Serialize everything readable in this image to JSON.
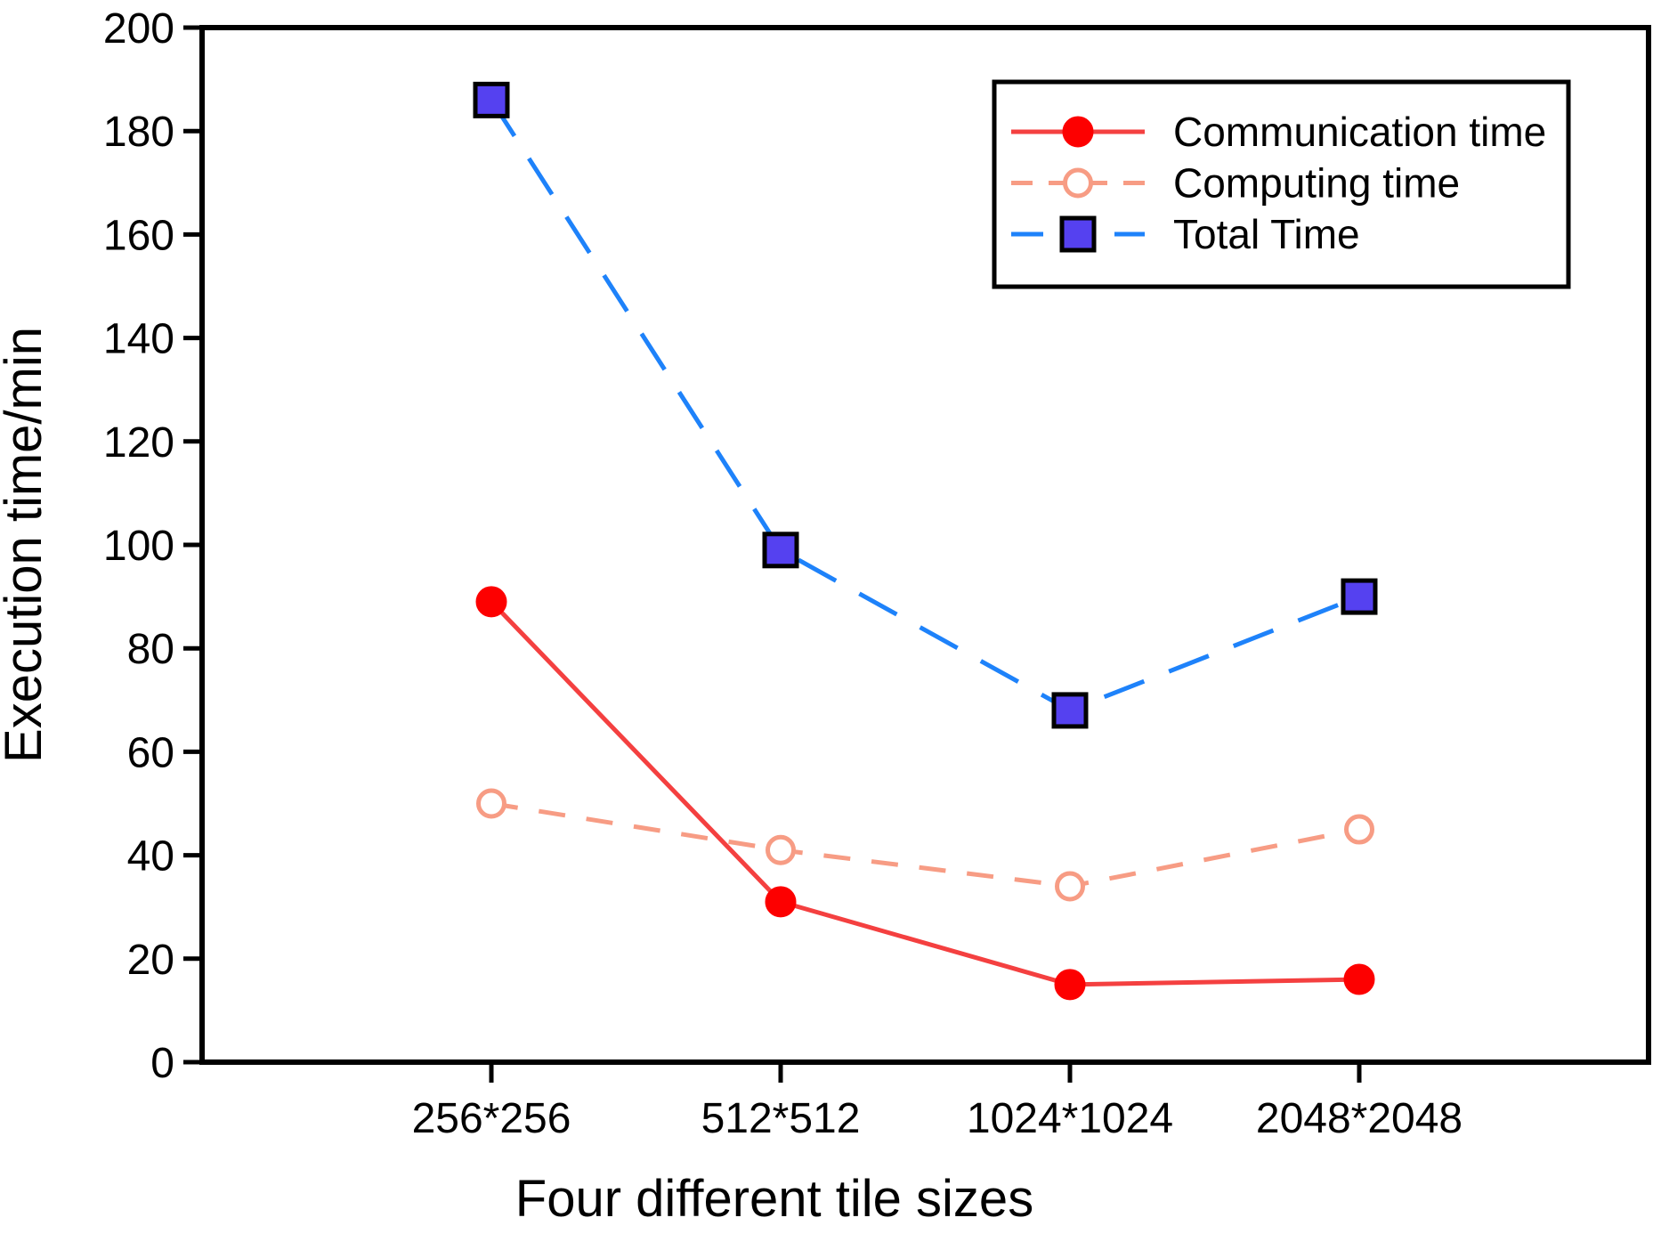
{
  "figure": {
    "background": "#ffffff",
    "frame_color": "#000000"
  },
  "chart_data": {
    "type": "line",
    "title": "",
    "xlabel": "Four different tile sizes",
    "ylabel": "Execution time/min",
    "categories": [
      "256*256",
      "512*512",
      "1024*1024",
      "2048*2048"
    ],
    "series": [
      {
        "name": "Communication time",
        "values": [
          89,
          31,
          15,
          16
        ],
        "line_color": "#f44040",
        "line_style": "solid",
        "marker": "circle",
        "marker_fill": "#fd0000",
        "marker_edge": "#fd0000"
      },
      {
        "name": "Computing time",
        "values": [
          50,
          41,
          34,
          45
        ],
        "line_color": "#f79c84",
        "line_style": "dashed",
        "marker": "circle-open",
        "marker_fill": "#ffffff",
        "marker_edge": "#f79c84"
      },
      {
        "name": "Total Time",
        "values": [
          186,
          99,
          68,
          90
        ],
        "line_color": "#1e82fa",
        "line_style": "long-dash",
        "marker": "square",
        "marker_fill": "#5541f0",
        "marker_edge": "#000000"
      }
    ],
    "ylim": [
      0,
      200
    ],
    "ytick_step": 20,
    "yticks": [
      0,
      20,
      40,
      60,
      80,
      100,
      120,
      140,
      160,
      180,
      200
    ],
    "grid": false,
    "legend_position": "upper right"
  }
}
